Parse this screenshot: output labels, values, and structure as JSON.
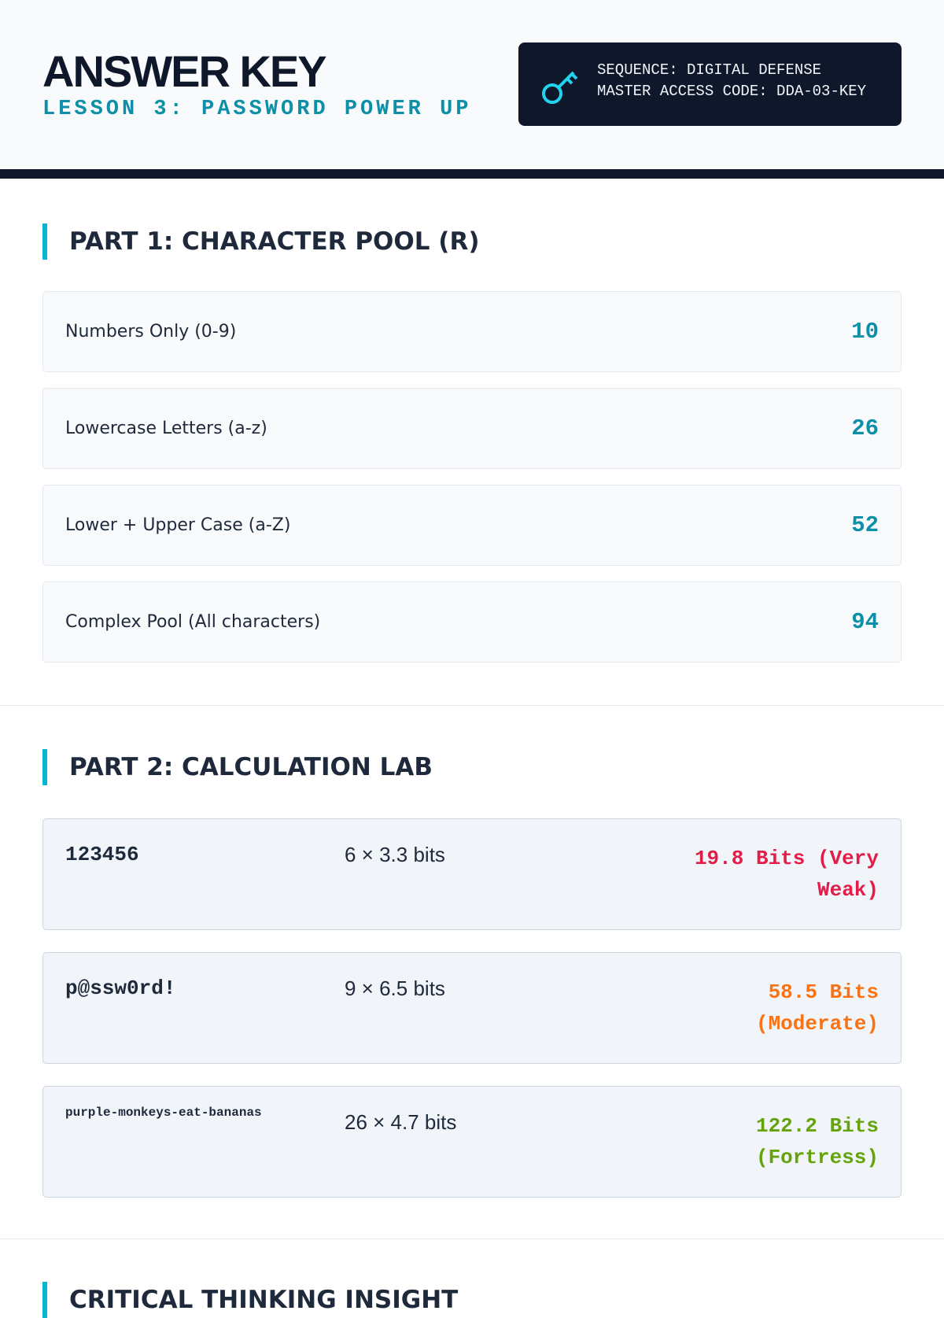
{
  "header": {
    "title": "ANSWER KEY",
    "subtitle": "LESSON 3: PASSWORD POWER UP",
    "badge": {
      "sequence": "SEQUENCE: DIGITAL DEFENSE",
      "code": "MASTER ACCESS CODE: DDA-03-KEY"
    }
  },
  "part1": {
    "title": "PART 1: CHARACTER POOL (R)",
    "items": [
      {
        "label": "Numbers Only (0-9)",
        "value": 10
      },
      {
        "label": "Lowercase Letters (a-z)",
        "value": 26
      },
      {
        "label": "Lower + Upper Case (a-Z)",
        "value": 52
      },
      {
        "label": "Complex Pool (All characters)",
        "value": 94
      }
    ]
  },
  "part2": {
    "title": "PART 2: CALCULATION LAB",
    "rows": [
      {
        "password": "123456",
        "formula": "6 × 3.3 bits",
        "result": "19.8 Bits (Very Weak)"
      },
      {
        "password": "p@ssw0rd!",
        "formula": "9 × 6.5 bits",
        "result": "58.5 Bits (Moderate)"
      },
      {
        "password": "purple-monkeys-eat-bananas",
        "formula": "26 × 4.7 bits",
        "result": "122.2 Bits (Fortress)"
      }
    ]
  },
  "part3": {
    "title": "CRITICAL THINKING INSIGHT"
  }
}
